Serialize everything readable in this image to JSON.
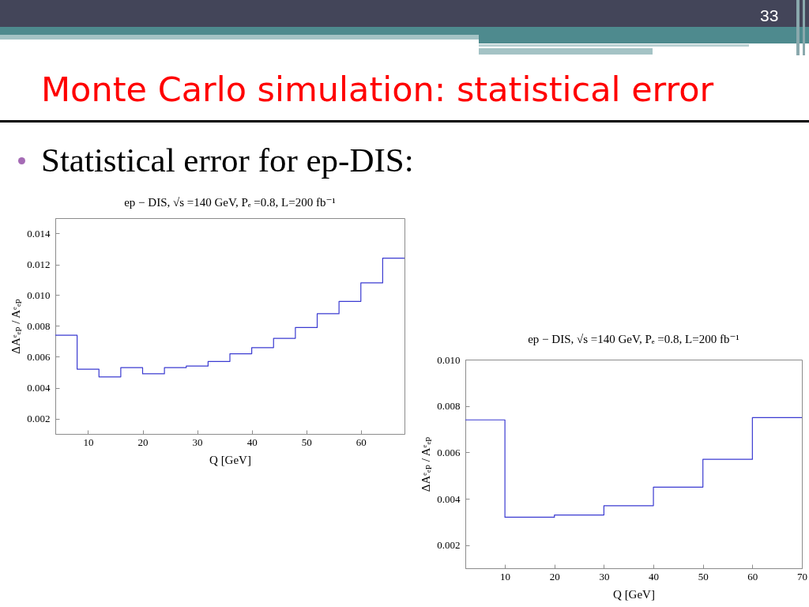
{
  "chart_data": [
    {
      "type": "step",
      "title": "ep − DIS, √s =140 GeV, Pₑ =0.8, L=200 fb⁻¹",
      "xlabel": "Q [GeV]",
      "ylabel": "ΔAᵉₑₚ / Aᵉₑₚ",
      "x": [
        4,
        8,
        12,
        16,
        20,
        24,
        28,
        32,
        36,
        40,
        44,
        48,
        52,
        56,
        60,
        64,
        68
      ],
      "series": [
        {
          "color": "#3b3bd1",
          "values": [
            0.0074,
            0.0052,
            0.0047,
            0.0053,
            0.0049,
            0.0053,
            0.0054,
            0.0057,
            0.0062,
            0.0066,
            0.0072,
            0.0079,
            0.0088,
            0.0096,
            0.0108,
            0.0124,
            0.0124
          ]
        }
      ],
      "xlim": [
        4,
        68
      ],
      "ylim": [
        0.001,
        0.015
      ],
      "xticks": [
        10,
        20,
        30,
        40,
        50,
        60
      ],
      "yticks": [
        0.002,
        0.004,
        0.006,
        0.008,
        {
          "value": 0.01,
          "label": "0.010"
        },
        0.012,
        0.014
      ],
      "annotations": [
        "Monte Carlo simulation: statistical error",
        "Statistical error for ep-DIS:",
        "33"
      ]
    },
    {
      "type": "step",
      "title": "ep − DIS, √s =140 GeV, Pₑ =0.8, L=200 fb⁻¹",
      "xlabel": "Q [GeV]",
      "ylabel": "ΔAᵉₑₚ / Aᵉₑₚ",
      "x": [
        2,
        10,
        20,
        30,
        40,
        50,
        60,
        70
      ],
      "series": [
        {
          "color": "#3b3bd1",
          "values": [
            0.0074,
            0.0032,
            0.0033,
            0.0037,
            0.0045,
            0.0057,
            0.0075,
            0.0075
          ]
        }
      ],
      "xlim": [
        2,
        70
      ],
      "ylim": [
        0.001,
        0.01
      ],
      "xticks": [
        10,
        20,
        30,
        40,
        50,
        60,
        70
      ],
      "yticks": [
        0.002,
        0.004,
        0.006,
        0.008,
        {
          "value": 0.01,
          "label": "0.010"
        }
      ]
    }
  ]
}
